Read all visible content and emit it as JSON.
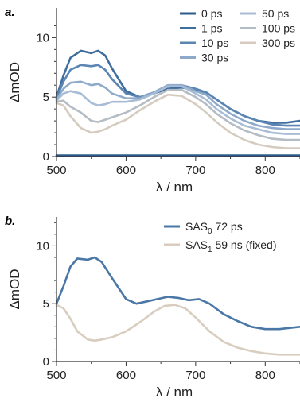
{
  "chart_data": [
    {
      "panel_label": "a.",
      "type": "line",
      "xlabel": "λ / nm",
      "ylabel": "ΔmOD",
      "xlim": [
        500,
        850
      ],
      "ylim": [
        0,
        12.5
      ],
      "xticks": [
        500,
        600,
        700,
        800
      ],
      "yticks": [
        0,
        5,
        10
      ],
      "legend_position": "top-right",
      "series": [
        {
          "name": "0 ps",
          "color": "#2d5b8a",
          "x": [
            500,
            520,
            540,
            560,
            580,
            600,
            620,
            640,
            660,
            680,
            700,
            720,
            740,
            760,
            780,
            800,
            820,
            850
          ],
          "y": [
            0.1,
            0.1,
            0.1,
            0.1,
            0.1,
            0.1,
            0.1,
            0.1,
            0.1,
            0.1,
            0.1,
            0.1,
            0.1,
            0.1,
            0.1,
            0.1,
            0.1,
            0.1
          ]
        },
        {
          "name": "1 ps",
          "color": "#3f6d9d",
          "x": [
            500,
            510,
            520,
            535,
            550,
            560,
            570,
            580,
            600,
            620,
            640,
            660,
            680,
            700,
            715,
            730,
            750,
            770,
            790,
            810,
            830,
            850
          ],
          "y": [
            5.0,
            6.8,
            8.3,
            8.9,
            8.7,
            8.9,
            8.5,
            7.4,
            5.5,
            5.0,
            5.3,
            5.7,
            5.8,
            5.6,
            5.4,
            4.8,
            4.0,
            3.4,
            3.0,
            2.85,
            2.85,
            3.0
          ]
        },
        {
          "name": "10 ps",
          "color": "#5b86b3",
          "x": [
            500,
            510,
            520,
            535,
            550,
            560,
            570,
            580,
            600,
            620,
            640,
            660,
            680,
            700,
            715,
            730,
            750,
            770,
            790,
            810,
            830,
            850
          ],
          "y": [
            4.9,
            6.3,
            7.3,
            7.7,
            7.6,
            7.7,
            7.3,
            6.5,
            5.3,
            5.0,
            5.4,
            5.9,
            6.0,
            5.7,
            5.4,
            4.8,
            4.0,
            3.4,
            3.0,
            2.7,
            2.6,
            2.6
          ]
        },
        {
          "name": "30 ps",
          "color": "#8eaacb",
          "x": [
            500,
            510,
            520,
            535,
            550,
            560,
            570,
            580,
            600,
            620,
            640,
            660,
            680,
            700,
            715,
            730,
            750,
            770,
            790,
            810,
            830,
            850
          ],
          "y": [
            4.8,
            5.7,
            6.2,
            6.3,
            6.0,
            6.1,
            5.8,
            5.3,
            4.9,
            4.9,
            5.4,
            6.0,
            6.0,
            5.5,
            5.2,
            4.4,
            3.6,
            3.0,
            2.6,
            2.4,
            2.3,
            2.3
          ]
        },
        {
          "name": "50 ps",
          "color": "#a8bdd5",
          "x": [
            500,
            510,
            520,
            535,
            550,
            560,
            570,
            580,
            600,
            620,
            640,
            660,
            680,
            700,
            715,
            730,
            750,
            770,
            790,
            810,
            830,
            850
          ],
          "y": [
            4.7,
            5.3,
            5.5,
            5.3,
            4.5,
            4.3,
            4.4,
            4.6,
            4.6,
            4.8,
            5.3,
            5.9,
            5.9,
            5.3,
            4.8,
            4.0,
            3.2,
            2.6,
            2.3,
            2.0,
            1.9,
            1.9
          ]
        },
        {
          "name": "100 ps",
          "color": "#b4bcc4",
          "x": [
            500,
            510,
            520,
            535,
            550,
            560,
            570,
            580,
            600,
            620,
            640,
            660,
            680,
            700,
            715,
            730,
            750,
            770,
            790,
            810,
            830,
            850
          ],
          "y": [
            4.6,
            4.7,
            4.2,
            3.7,
            3.0,
            2.9,
            3.1,
            3.3,
            3.7,
            4.3,
            5.0,
            5.6,
            5.6,
            5.0,
            4.4,
            3.6,
            2.8,
            2.2,
            1.8,
            1.5,
            1.4,
            1.4
          ]
        },
        {
          "name": "300 ps",
          "color": "#d5ccbf",
          "x": [
            500,
            510,
            520,
            535,
            550,
            560,
            570,
            580,
            600,
            620,
            640,
            660,
            680,
            700,
            715,
            730,
            750,
            770,
            790,
            810,
            830,
            850
          ],
          "y": [
            4.5,
            4.3,
            3.4,
            2.4,
            2.0,
            2.1,
            2.3,
            2.6,
            3.1,
            3.9,
            4.6,
            5.2,
            5.1,
            4.4,
            3.7,
            2.9,
            2.0,
            1.4,
            1.0,
            0.8,
            0.7,
            0.7
          ]
        }
      ]
    },
    {
      "panel_label": "b.",
      "type": "line",
      "xlabel": "λ / nm",
      "ylabel": "ΔmOD",
      "xlim": [
        500,
        850
      ],
      "ylim": [
        0,
        12.5
      ],
      "xticks": [
        500,
        600,
        700,
        800
      ],
      "yticks": [
        0,
        5,
        10
      ],
      "legend_position": "top-right",
      "series": [
        {
          "name": "SAS",
          "name_sub": "0",
          "name_rest": " 72 ps",
          "color": "#4a77a6",
          "x": [
            500,
            510,
            520,
            530,
            545,
            555,
            565,
            580,
            600,
            615,
            630,
            645,
            660,
            675,
            690,
            705,
            720,
            740,
            760,
            780,
            800,
            820,
            850
          ],
          "y": [
            5.0,
            6.5,
            8.2,
            8.9,
            8.8,
            9.0,
            8.6,
            7.2,
            5.4,
            5.0,
            5.2,
            5.4,
            5.6,
            5.5,
            5.3,
            5.4,
            5.0,
            4.1,
            3.5,
            3.0,
            2.8,
            2.8,
            3.0
          ]
        },
        {
          "name": "SAS",
          "name_sub": "1",
          "name_rest": " 59 ns (fixed)",
          "color": "#d8cdbf",
          "x": [
            500,
            510,
            520,
            530,
            545,
            555,
            565,
            580,
            600,
            620,
            640,
            655,
            670,
            685,
            700,
            720,
            740,
            760,
            780,
            800,
            820,
            850
          ],
          "y": [
            4.9,
            4.6,
            3.7,
            2.6,
            1.9,
            1.8,
            1.9,
            2.1,
            2.6,
            3.4,
            4.3,
            4.8,
            4.9,
            4.6,
            3.8,
            2.6,
            1.7,
            1.2,
            0.9,
            0.7,
            0.6,
            0.6
          ]
        }
      ]
    }
  ]
}
